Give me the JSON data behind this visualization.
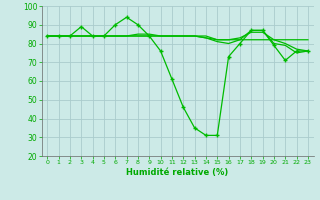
{
  "background_color": "#cceae7",
  "grid_color": "#aacccc",
  "line_color": "#00bb00",
  "xlabel": "Humidité relative (%)",
  "xlabel_color": "#00aa00",
  "tick_color": "#00aa00",
  "ylim": [
    20,
    100
  ],
  "xlim": [
    -0.5,
    23.5
  ],
  "yticks": [
    20,
    30,
    40,
    50,
    60,
    70,
    80,
    90,
    100
  ],
  "xticks": [
    0,
    1,
    2,
    3,
    4,
    5,
    6,
    7,
    8,
    9,
    10,
    11,
    12,
    13,
    14,
    15,
    16,
    17,
    18,
    19,
    20,
    21,
    22,
    23
  ],
  "series": [
    {
      "x": [
        0,
        1,
        2,
        3,
        4,
        5,
        6,
        7,
        8,
        9,
        10,
        11,
        12,
        13,
        14,
        15,
        16,
        17,
        18,
        19,
        20,
        21,
        22,
        23
      ],
      "y": [
        84,
        84,
        84,
        89,
        84,
        84,
        90,
        94,
        90,
        84,
        76,
        61,
        46,
        35,
        31,
        31,
        73,
        80,
        87,
        87,
        79,
        71,
        76,
        76
      ],
      "marker": "+"
    },
    {
      "x": [
        0,
        1,
        2,
        3,
        4,
        5,
        6,
        7,
        8,
        9,
        10,
        11,
        12,
        13,
        14,
        15,
        16,
        17,
        18,
        19,
        20,
        21,
        22,
        23
      ],
      "y": [
        84,
        84,
        84,
        84,
        84,
        84,
        84,
        84,
        84,
        84,
        84,
        84,
        84,
        84,
        84,
        82,
        82,
        82,
        82,
        82,
        82,
        82,
        82,
        82
      ],
      "marker": null
    },
    {
      "x": [
        0,
        1,
        2,
        3,
        4,
        5,
        6,
        7,
        8,
        9,
        10,
        11,
        12,
        13,
        14,
        15,
        16,
        17,
        18,
        19,
        20,
        21,
        22,
        23
      ],
      "y": [
        84,
        84,
        84,
        84,
        84,
        84,
        84,
        84,
        85,
        85,
        84,
        84,
        84,
        84,
        83,
        82,
        82,
        83,
        86,
        86,
        82,
        80,
        77,
        76
      ],
      "marker": null
    },
    {
      "x": [
        0,
        1,
        2,
        3,
        4,
        5,
        6,
        7,
        8,
        9,
        10,
        11,
        12,
        13,
        14,
        15,
        16,
        17,
        18,
        19,
        20,
        21,
        22,
        23
      ],
      "y": [
        84,
        84,
        84,
        84,
        84,
        84,
        84,
        84,
        84,
        84,
        84,
        84,
        84,
        84,
        83,
        81,
        80,
        82,
        87,
        87,
        80,
        79,
        75,
        76
      ],
      "marker": null
    }
  ]
}
